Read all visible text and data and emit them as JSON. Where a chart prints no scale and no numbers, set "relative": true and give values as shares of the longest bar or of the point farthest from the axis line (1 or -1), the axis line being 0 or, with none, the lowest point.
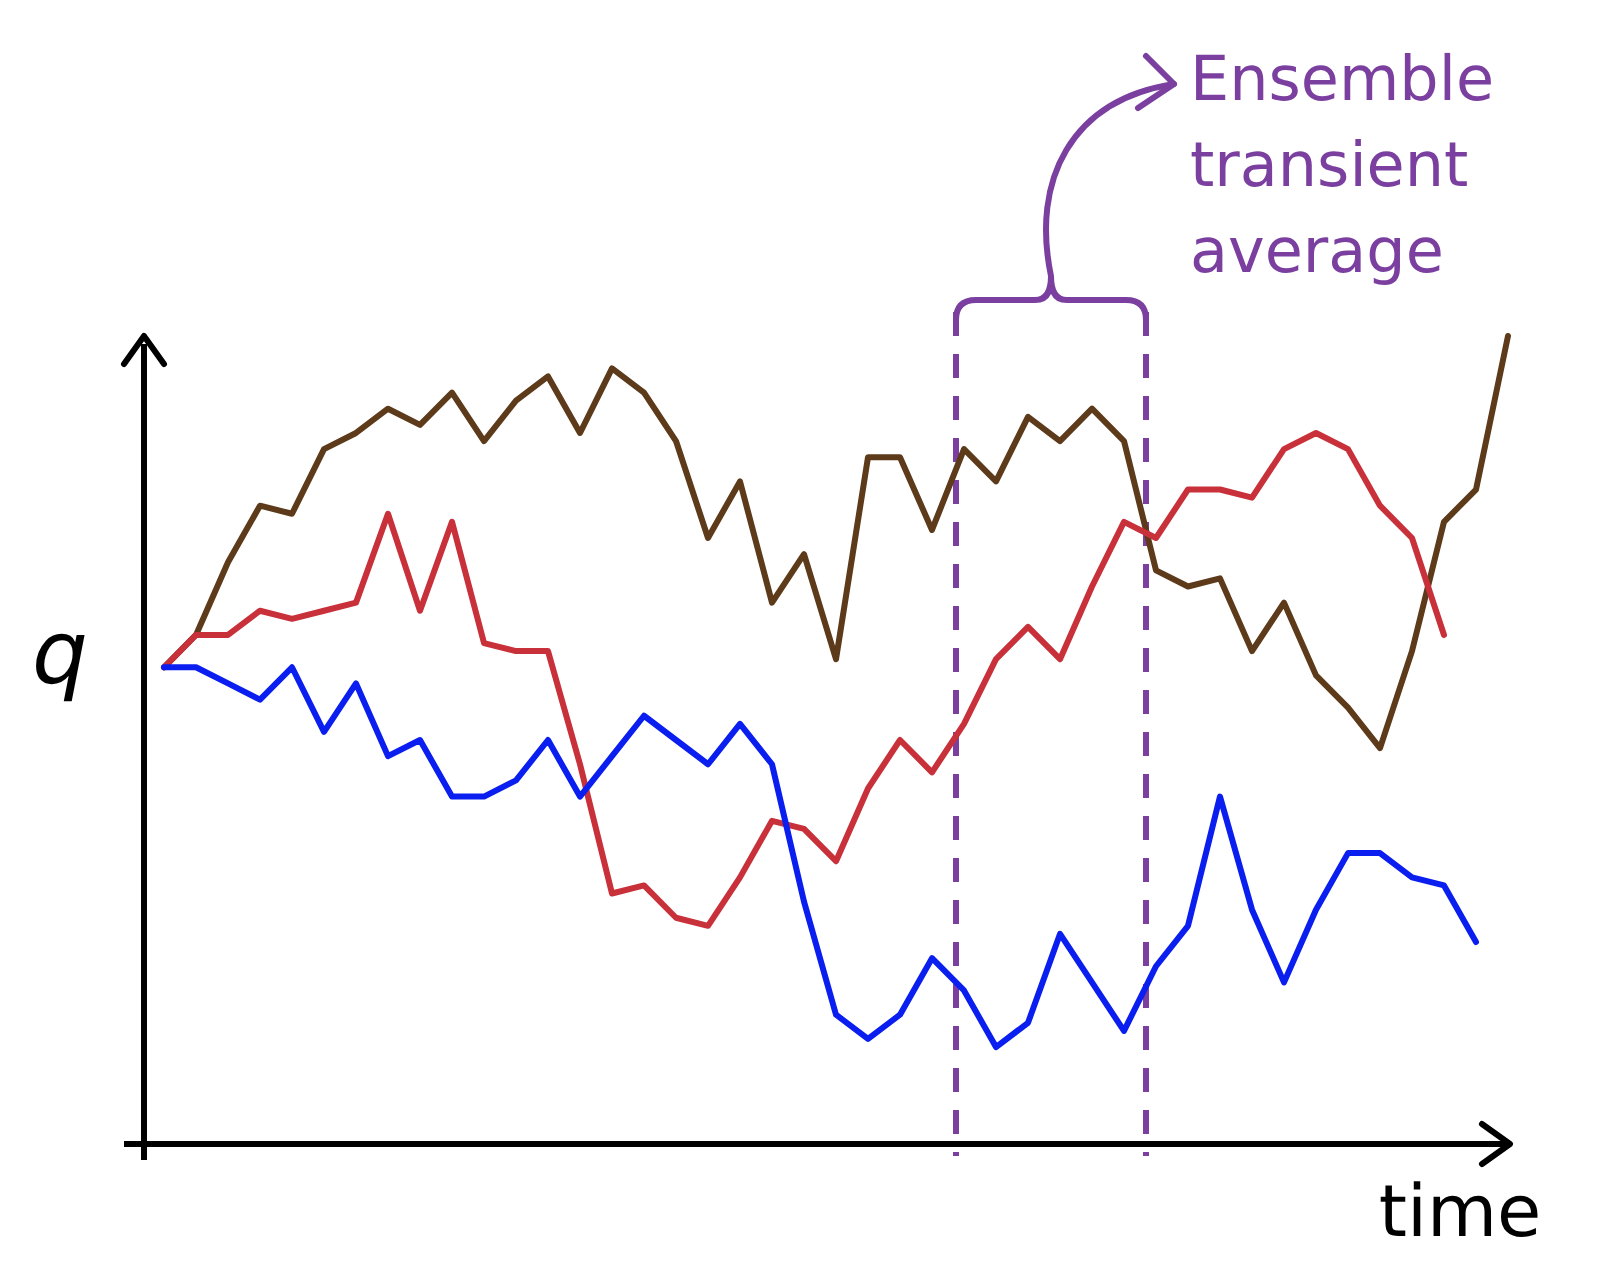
{
  "chart_data": {
    "type": "line",
    "relative": true,
    "xlabel": "time",
    "ylabel": "q",
    "categories": [
      null,
      null,
      null,
      null,
      null,
      null,
      null,
      null,
      null,
      null,
      null,
      null,
      null,
      null,
      null,
      null,
      null,
      null,
      null,
      null,
      null,
      null,
      null,
      null,
      null,
      null,
      null,
      null,
      null,
      null,
      null,
      null,
      null,
      null,
      null,
      null,
      null,
      null,
      null,
      null,
      null,
      null,
      null
    ],
    "series": [
      {
        "color": "#5c3a1a",
        "values": [
          0.59,
          0.63,
          0.72,
          0.79,
          0.78,
          0.86,
          0.88,
          0.91,
          0.89,
          0.93,
          0.87,
          0.92,
          0.95,
          0.88,
          0.96,
          0.93,
          0.87,
          0.75,
          0.82,
          0.67,
          0.73,
          0.6,
          0.85,
          0.85,
          0.76,
          0.86,
          0.82,
          0.9,
          0.87,
          0.91,
          0.87,
          0.71,
          0.69,
          0.7,
          0.61,
          0.67,
          0.58,
          0.54,
          0.49,
          0.61,
          0.77,
          0.81,
          1
        ]
      },
      {
        "color": "#c8303a",
        "values": [
          0.59,
          0.63,
          0.63,
          0.66,
          0.65,
          0.66,
          0.67,
          0.78,
          0.66,
          0.77,
          0.62,
          0.61,
          0.61,
          0.47,
          0.31,
          0.32,
          0.28,
          0.27,
          0.33,
          0.4,
          0.39,
          0.35,
          0.44,
          0.5,
          0.46,
          0.52,
          0.6,
          0.64,
          0.6,
          0.69,
          0.77,
          0.75,
          0.81,
          0.81,
          0.8,
          0.86,
          0.88,
          0.86,
          0.79,
          0.75,
          0.63,
          null,
          null
        ]
      },
      {
        "color": "#0a1ef0",
        "values": [
          0.59,
          0.59,
          0.57,
          0.55,
          0.59,
          0.51,
          0.57,
          0.48,
          0.5,
          0.43,
          0.43,
          0.45,
          0.5,
          0.43,
          0.48,
          0.53,
          0.5,
          0.47,
          0.52,
          0.47,
          0.3,
          0.16,
          0.13,
          0.16,
          0.23,
          0.19,
          0.12,
          0.15,
          0.26,
          0.2,
          0.14,
          0.22,
          0.27,
          0.43,
          0.29,
          0.2,
          0.29,
          0.36,
          0.36,
          0.33,
          0.32,
          0.25,
          null
        ]
      }
    ],
    "annotations": [
      "Ensemble transient average"
    ]
  }
}
